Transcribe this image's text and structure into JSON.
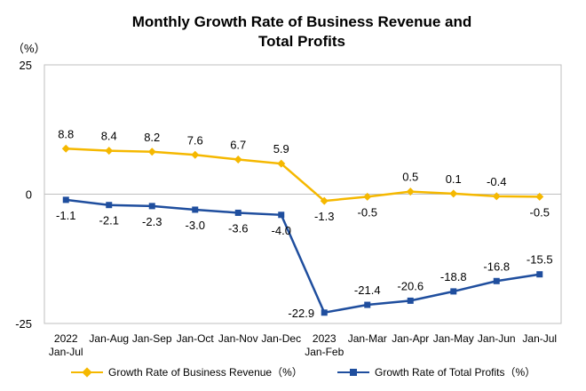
{
  "chart_data": {
    "type": "line",
    "title": "Monthly Growth Rate of Business Revenue and Total Profits",
    "unit": "（%）",
    "categories": [
      [
        "2022",
        "Jan-Jul"
      ],
      [
        "Jan-Aug"
      ],
      [
        "Jan-Sep"
      ],
      [
        "Jan-Oct"
      ],
      [
        "Jan-Nov"
      ],
      [
        "Jan-Dec"
      ],
      [
        "2023",
        "Jan-Feb"
      ],
      [
        "Jan-Mar"
      ],
      [
        "Jan-Apr"
      ],
      [
        "Jan-May"
      ],
      [
        "Jan-Jun"
      ],
      [
        "Jan-Jul"
      ]
    ],
    "ylim": [
      -25,
      25
    ],
    "yticks": [
      25,
      0,
      -25
    ],
    "grid": false,
    "legend_position": "bottom",
    "series": [
      {
        "name": "Growth Rate of Business Revenue（%）",
        "color": "#F5B800",
        "marker": "diamond",
        "values": [
          8.8,
          8.4,
          8.2,
          7.6,
          6.7,
          5.9,
          -1.3,
          -0.5,
          0.5,
          0.1,
          -0.4,
          -0.5
        ],
        "labels": [
          "8.8",
          "8.4",
          "8.2",
          "7.6",
          "6.7",
          "5.9",
          "-1.3",
          "-0.5",
          "0.5",
          "0.1",
          "-0.4",
          "-0.5"
        ]
      },
      {
        "name": "Growth Rate of Total Profits（%）",
        "color": "#1F4E9E",
        "marker": "square",
        "values": [
          -1.1,
          -2.1,
          -2.3,
          -3.0,
          -3.6,
          -4.0,
          -22.9,
          -21.4,
          -20.6,
          -18.8,
          -16.8,
          -15.5
        ],
        "labels": [
          "-1.1",
          "-2.1",
          "-2.3",
          "-3.0",
          "-3.6",
          "-4.0",
          "-22.9",
          "-21.4",
          "-20.6",
          "-18.8",
          "-16.8",
          "-15.5"
        ]
      }
    ]
  }
}
